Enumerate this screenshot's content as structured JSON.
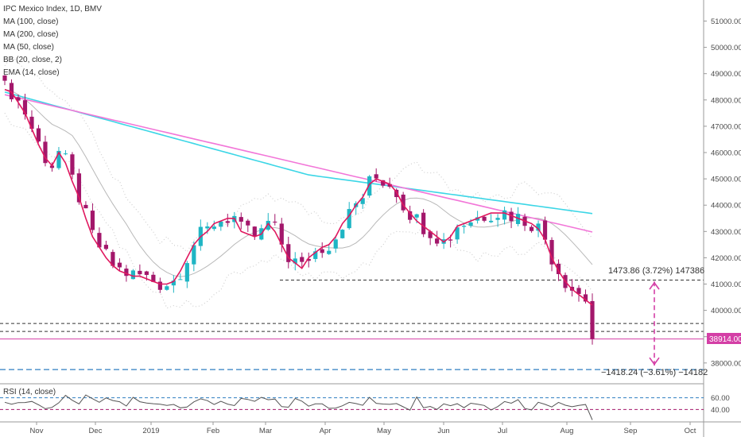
{
  "legend": {
    "title": "IPC Mexico Index, 1D, BMV",
    "items": [
      "MA (100, close)",
      "MA (200, close)",
      "MA (50, close)",
      "BB (20, close, 2)",
      "EMA (14, close)"
    ]
  },
  "rsi_legend": "RSI (14, close)",
  "annotations": {
    "upper": "1473.86 (3.72%) 147386",
    "lower": "−1418.24 (−3.61%) −14182"
  },
  "last_price_label": "38914.00",
  "colors": {
    "up": "#1fb5c4",
    "down": "#a3176b",
    "ema": "#e0185f",
    "ma100": "#3cd6e6",
    "ma200": "#f276d8",
    "ma50": "#b8b8b8",
    "bb": "#cfcfcf",
    "price_line": "#d43fa6",
    "rsi": "#555555"
  },
  "chart_data": {
    "type": "candlestick",
    "y_axis": {
      "ticks": [
        38000,
        39000,
        40000,
        41000,
        42000,
        43000,
        44000,
        45000,
        46000,
        47000,
        48000,
        49000,
        50000,
        51000
      ],
      "ylim": [
        37300,
        51800
      ]
    },
    "x_axis": {
      "ticks": [
        "Nov",
        "Dec",
        "2019",
        "Feb",
        "Mar",
        "Apr",
        "May",
        "Jun",
        "Jul",
        "Aug",
        "Sep",
        "Oct"
      ]
    },
    "series": [
      {
        "name": "EMA (14, close)",
        "values": [
          48400,
          48300,
          47900,
          47500,
          46900,
          46300,
          45800,
          45500,
          46000,
          45600,
          44900,
          44300,
          43500,
          42800,
          42400,
          42000,
          41700,
          41500,
          41400,
          41300,
          41300,
          41200,
          41100,
          41000,
          41000,
          41100,
          41500,
          42000,
          42500,
          42800,
          43000,
          43300,
          43400,
          43500,
          43500,
          43000,
          42900,
          42800,
          42900,
          43300,
          43000,
          42500,
          42000,
          41800,
          41600,
          42000,
          42200,
          42400,
          42500,
          42800,
          43300,
          43600,
          44000,
          44300,
          44800,
          45000,
          44900,
          44800,
          44500,
          44000,
          43700,
          43400,
          43200,
          43000,
          42800,
          42600,
          42800,
          43200,
          43300,
          43400,
          43500,
          43600,
          43700,
          43700,
          43700,
          43600,
          43500,
          43400,
          43300,
          43100,
          42700,
          42000,
          41500,
          41100,
          40800,
          40600,
          40400,
          40200
        ]
      }
    ],
    "ohlc_summary": {
      "high": 48500,
      "low": 38914,
      "last": 38914
    },
    "measure_upper": {
      "change": 1473.86,
      "percent": 3.72,
      "ticks": 147386
    },
    "measure_lower": {
      "change": -1418.24,
      "percent": -3.61,
      "ticks": -14182
    },
    "horizontal_levels": [
      41150,
      39500,
      39200,
      37750
    ],
    "rsi": {
      "levels": [
        40,
        60
      ],
      "tick_labels": [
        "40.00",
        "60.00"
      ]
    }
  }
}
